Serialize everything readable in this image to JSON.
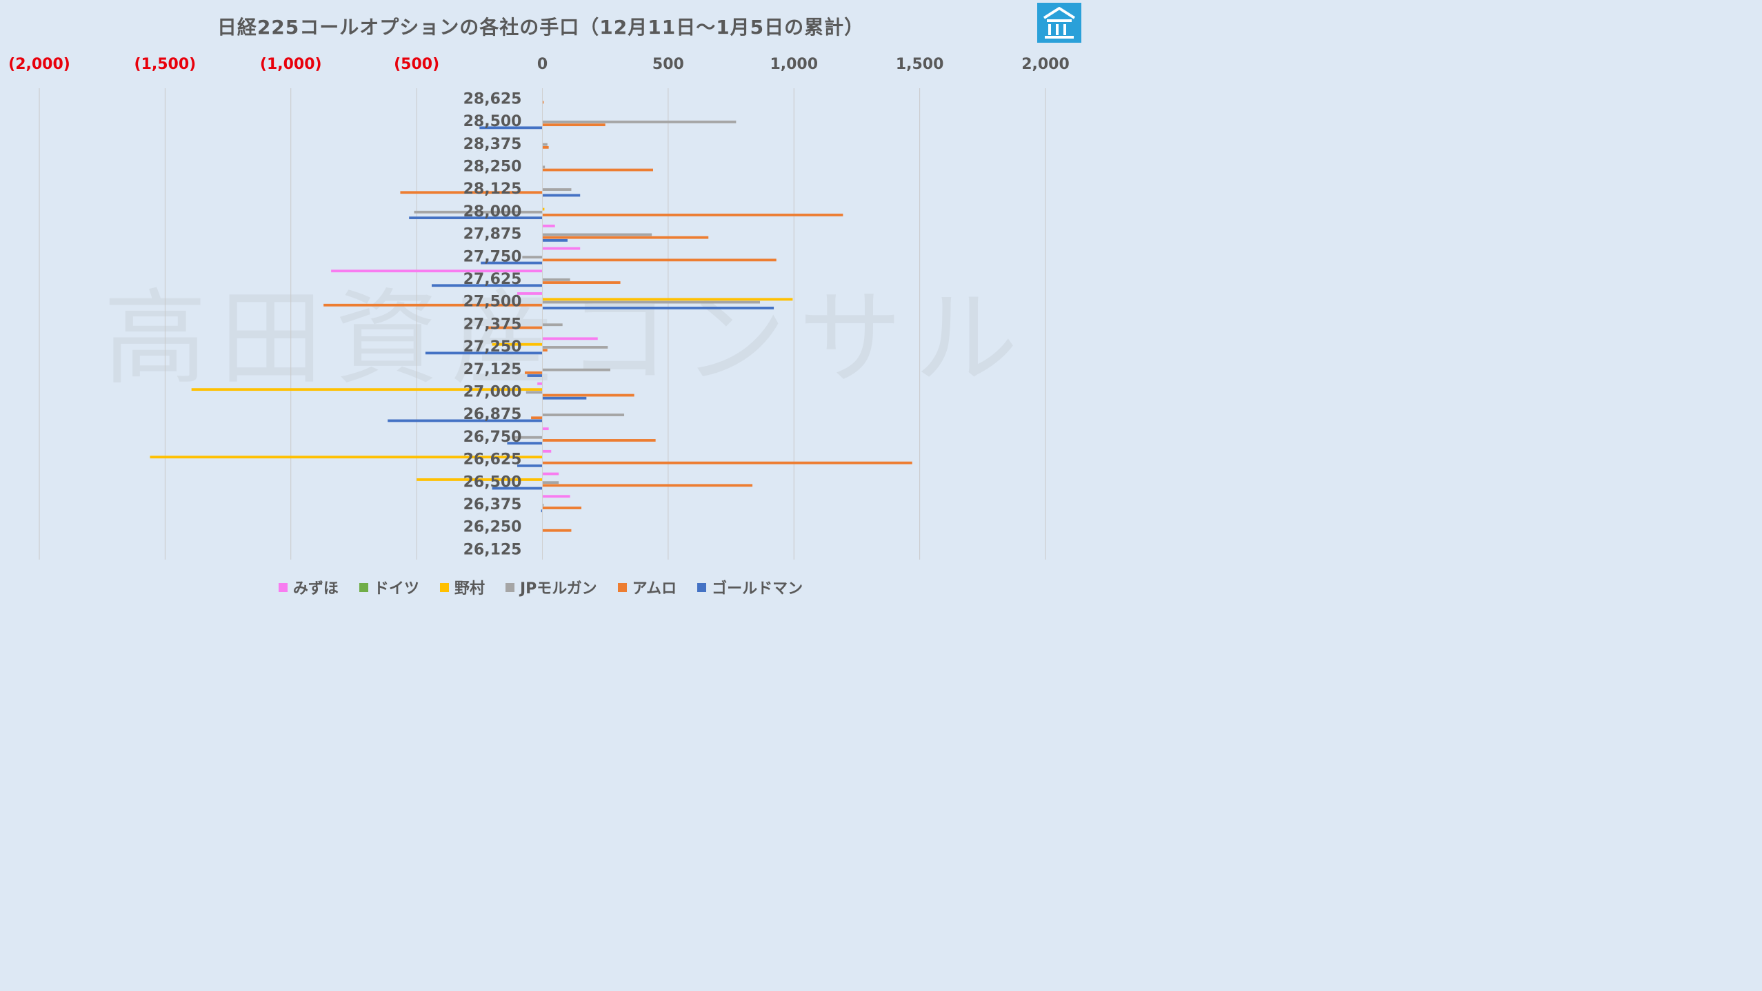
{
  "chart_data": {
    "type": "bar",
    "orientation": "horizontal",
    "title": "日経225コールオプションの各社の手口（12月11日～1月5日の累計）",
    "xlim": [
      -2000,
      2000
    ],
    "x_ticks": [
      {
        "label": "(2,000)",
        "value": -2000,
        "color": "#e8000b"
      },
      {
        "label": "(1,500)",
        "value": -1500,
        "color": "#e8000b"
      },
      {
        "label": "(1,000)",
        "value": -1000,
        "color": "#e8000b"
      },
      {
        "label": "(500)",
        "value": -500,
        "color": "#e8000b"
      },
      {
        "label": "0",
        "value": 0,
        "color": "#595959"
      },
      {
        "label": "500",
        "value": 500,
        "color": "#595959"
      },
      {
        "label": "1,000",
        "value": 1000,
        "color": "#595959"
      },
      {
        "label": "1,500",
        "value": 1500,
        "color": "#595959"
      },
      {
        "label": "2,000",
        "value": 2000,
        "color": "#595959"
      }
    ],
    "grid": true,
    "legend_position": "bottom",
    "categories": [
      "28,625",
      "28,500",
      "28,375",
      "28,250",
      "28,125",
      "28,000",
      "27,875",
      "27,750",
      "27,625",
      "27,500",
      "27,375",
      "27,250",
      "27,125",
      "27,000",
      "26,875",
      "26,750",
      "26,625",
      "26,500",
      "26,375",
      "26,250",
      "26,125"
    ],
    "series": [
      {
        "name": "みずほ",
        "color": "#f87cf0",
        "values": [
          0,
          0,
          0,
          0,
          0,
          0,
          50,
          150,
          -840,
          -100,
          0,
          220,
          0,
          -20,
          0,
          25,
          35,
          65,
          110,
          0,
          0
        ]
      },
      {
        "name": "ドイツ",
        "color": "#70ad47",
        "values": [
          0,
          0,
          0,
          0,
          0,
          0,
          0,
          0,
          0,
          0,
          0,
          0,
          0,
          0,
          0,
          0,
          0,
          0,
          0,
          0,
          0
        ]
      },
      {
        "name": "野村",
        "color": "#ffc000",
        "values": [
          0,
          0,
          0,
          0,
          0,
          8,
          0,
          0,
          0,
          995,
          0,
          -200,
          0,
          -1395,
          0,
          0,
          -1560,
          -500,
          0,
          0,
          0
        ]
      },
      {
        "name": "JPモルガン",
        "color": "#a5a5a5",
        "values": [
          0,
          770,
          20,
          10,
          115,
          -510,
          435,
          -80,
          110,
          865,
          80,
          260,
          270,
          -65,
          325,
          -120,
          0,
          65,
          5,
          0,
          0
        ]
      },
      {
        "name": "アムロ",
        "color": "#ed7d31",
        "values": [
          5,
          250,
          25,
          440,
          -565,
          1195,
          660,
          930,
          310,
          -870,
          -220,
          20,
          -70,
          365,
          -45,
          450,
          1470,
          835,
          155,
          115,
          0
        ]
      },
      {
        "name": "ゴールドマン",
        "color": "#4472c4",
        "values": [
          0,
          -250,
          0,
          0,
          150,
          -530,
          100,
          -245,
          -440,
          920,
          0,
          -465,
          -60,
          175,
          -615,
          -140,
          -100,
          -200,
          -5,
          0,
          0
        ]
      }
    ]
  }
}
